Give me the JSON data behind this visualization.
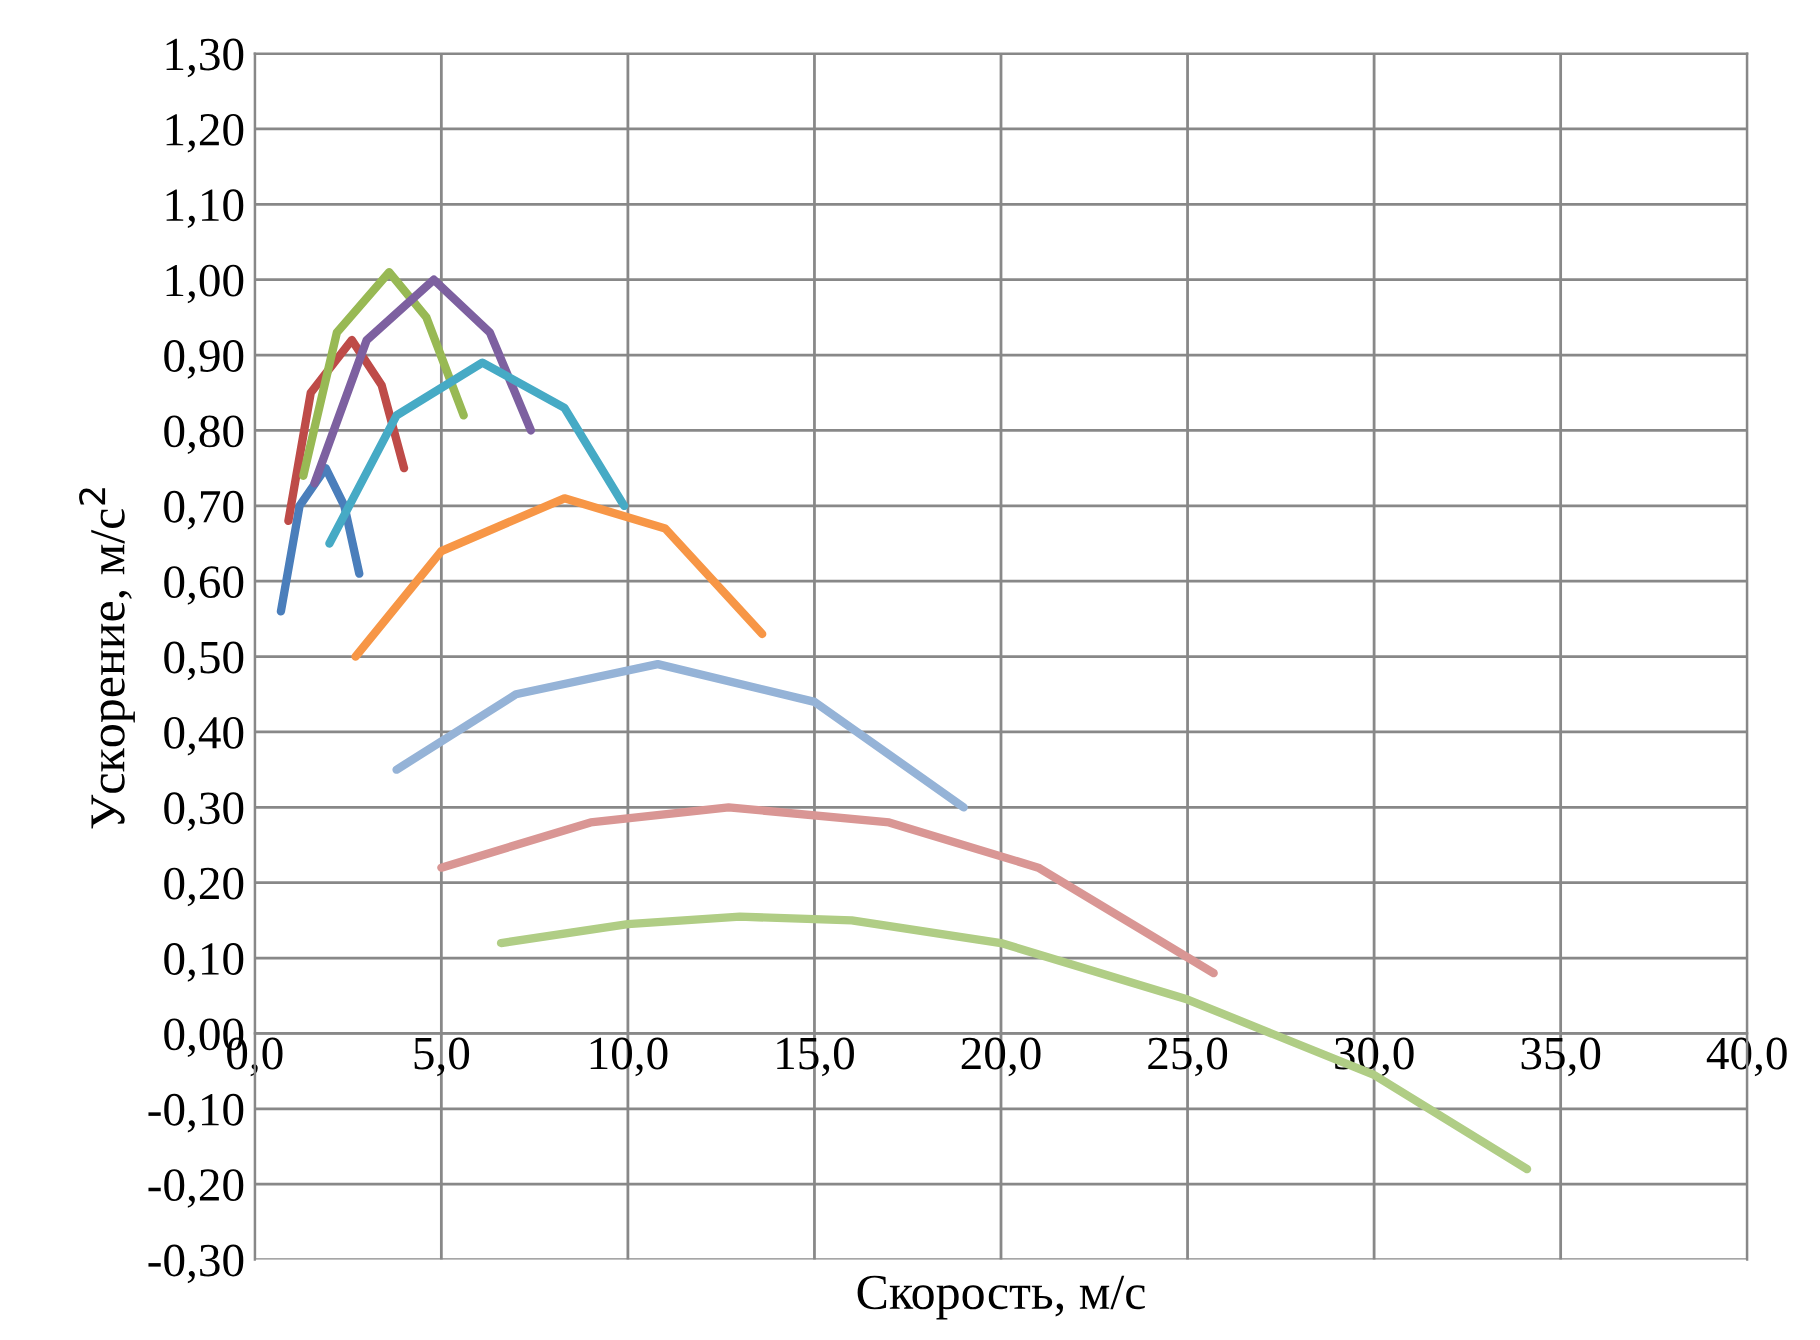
{
  "chart_data": {
    "type": "line",
    "xlabel": "Скорость, м/с",
    "ylabel": "Ускорение, м/с$^{2}$",
    "xlim": [
      0,
      40
    ],
    "ylim": [
      -0.3,
      1.3
    ],
    "xticks": [
      {
        "value": 0,
        "label": "0,0"
      },
      {
        "value": 5,
        "label": "5,0"
      },
      {
        "value": 10,
        "label": "10,0"
      },
      {
        "value": 15,
        "label": "15,0"
      },
      {
        "value": 20,
        "label": "20,0"
      },
      {
        "value": 25,
        "label": "25,0"
      },
      {
        "value": 30,
        "label": "30,0"
      },
      {
        "value": 35,
        "label": "35,0"
      },
      {
        "value": 40,
        "label": "40,0"
      }
    ],
    "yticks": [
      {
        "value": -0.3,
        "label": "-0,30"
      },
      {
        "value": -0.2,
        "label": "-0,20"
      },
      {
        "value": -0.1,
        "label": "-0,10"
      },
      {
        "value": 0,
        "label": "0,00"
      },
      {
        "value": 0.1,
        "label": "0,10"
      },
      {
        "value": 0.2,
        "label": "0,20"
      },
      {
        "value": 0.3,
        "label": "0,30"
      },
      {
        "value": 0.4,
        "label": "0,40"
      },
      {
        "value": 0.5,
        "label": "0,50"
      },
      {
        "value": 0.6,
        "label": "0,60"
      },
      {
        "value": 0.7,
        "label": "0,70"
      },
      {
        "value": 0.8,
        "label": "0,80"
      },
      {
        "value": 0.9,
        "label": "0,90"
      },
      {
        "value": 1.0,
        "label": "1,00"
      },
      {
        "value": 1.1,
        "label": "1,10"
      },
      {
        "value": 1.2,
        "label": "1,20"
      },
      {
        "value": 1.3,
        "label": "1,30"
      }
    ],
    "grid": true,
    "marker": "none",
    "line_style": "solid",
    "series": [
      {
        "color": "#4a7ebb",
        "x": [
          0.7,
          1.2,
          1.9,
          2.4,
          2.8
        ],
        "values": [
          0.56,
          0.7,
          0.75,
          0.7,
          0.61
        ]
      },
      {
        "color": "#be4b48",
        "x": [
          0.9,
          1.5,
          2.6,
          3.4,
          4.0
        ],
        "values": [
          0.68,
          0.85,
          0.92,
          0.86,
          0.75
        ]
      },
      {
        "color": "#98b954",
        "x": [
          1.3,
          2.2,
          3.6,
          4.6,
          5.6
        ],
        "values": [
          0.74,
          0.93,
          1.01,
          0.95,
          0.82
        ]
      },
      {
        "color": "#7d60a0",
        "x": [
          1.6,
          3.0,
          4.8,
          6.3,
          7.4
        ],
        "values": [
          0.73,
          0.92,
          1.0,
          0.93,
          0.8
        ]
      },
      {
        "color": "#46aac5",
        "x": [
          2.0,
          3.8,
          6.1,
          8.3,
          9.9
        ],
        "values": [
          0.65,
          0.82,
          0.89,
          0.83,
          0.7
        ]
      },
      {
        "color": "#f79646",
        "x": [
          2.7,
          5.0,
          8.3,
          11.0,
          13.6
        ],
        "values": [
          0.5,
          0.64,
          0.71,
          0.67,
          0.53
        ]
      },
      {
        "color": "#95b3d7",
        "x": [
          3.8,
          7.0,
          10.8,
          15.0,
          19.0
        ],
        "values": [
          0.35,
          0.45,
          0.49,
          0.44,
          0.3
        ]
      },
      {
        "color": "#d99694",
        "x": [
          5.0,
          9.0,
          12.7,
          17.0,
          21.0,
          25.7
        ],
        "values": [
          0.22,
          0.28,
          0.3,
          0.28,
          0.22,
          0.08
        ]
      },
      {
        "color": "#b0cd85",
        "x": [
          6.6,
          10.0,
          13.0,
          16.0,
          20.0,
          25.0,
          30.0,
          34.1
        ],
        "values": [
          0.12,
          0.145,
          0.155,
          0.15,
          0.12,
          0.045,
          -0.055,
          -0.18
        ]
      }
    ]
  }
}
